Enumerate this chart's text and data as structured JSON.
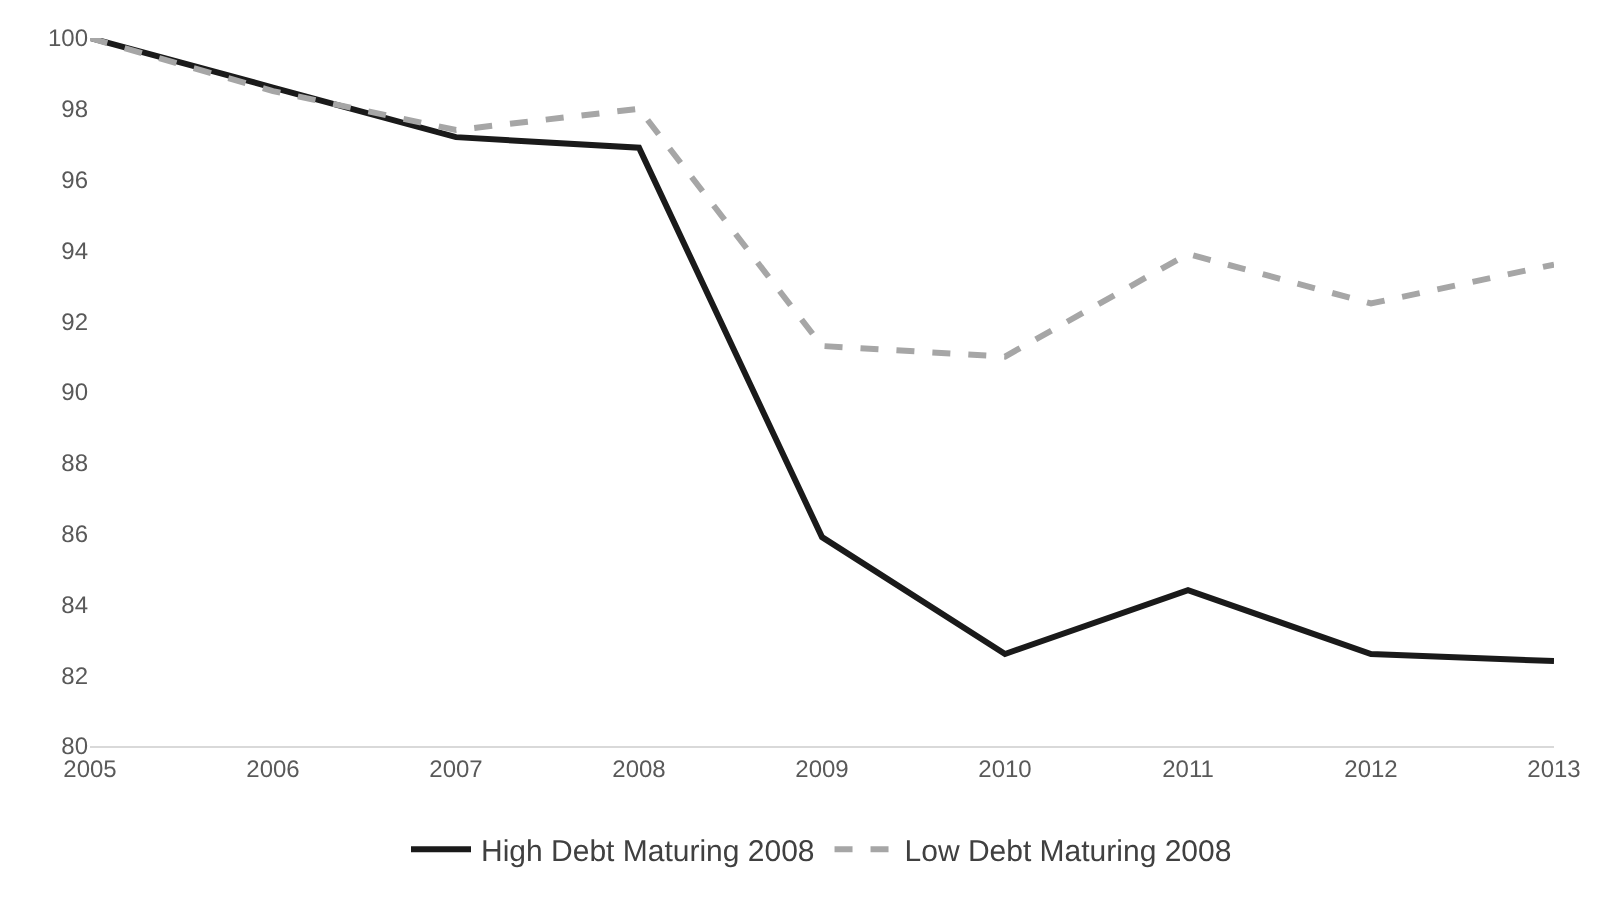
{
  "chart_data": {
    "type": "line",
    "categories": [
      "2005",
      "2006",
      "2007",
      "2008",
      "2009",
      "2010",
      "2011",
      "2012",
      "2013"
    ],
    "series": [
      {
        "name": "High Debt Maturing 2008",
        "color": "#1a1a1a",
        "line_style": "solid",
        "values": [
          100,
          98.6,
          97.2,
          96.9,
          85.9,
          82.6,
          84.4,
          82.6,
          82.4
        ]
      },
      {
        "name": "Low Debt Maturing 2008",
        "color": "#a6a6a6",
        "line_style": "dashed",
        "values": [
          100,
          98.5,
          97.4,
          98.0,
          91.3,
          91.0,
          93.9,
          92.5,
          93.6
        ]
      }
    ],
    "ylim": [
      80,
      100
    ],
    "yticks": [
      80,
      82,
      84,
      86,
      88,
      90,
      92,
      94,
      96,
      98,
      100
    ],
    "grid": false,
    "legend": "bottom",
    "marker": "none"
  }
}
